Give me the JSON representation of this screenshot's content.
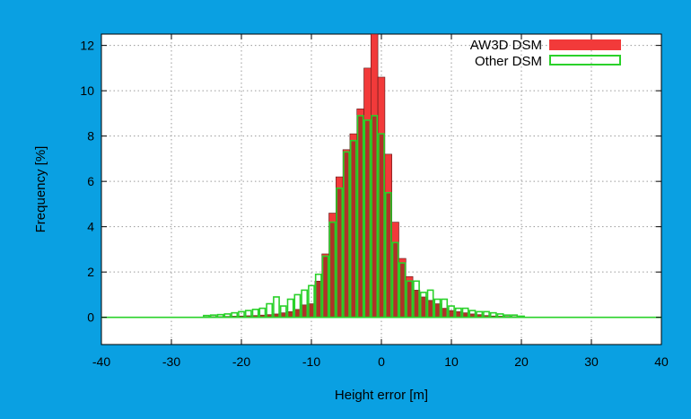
{
  "chart_data": {
    "type": "bar",
    "xlabel": "Height error [m]",
    "ylabel": "Frequency [%]",
    "xlim": [
      -40,
      40
    ],
    "ylim": [
      -1.2,
      12.5
    ],
    "xticks": [
      -40,
      -30,
      -20,
      -10,
      0,
      10,
      20,
      30,
      40
    ],
    "yticks": [
      0,
      2,
      4,
      6,
      8,
      10,
      12
    ],
    "grid": true,
    "legend_position": "top-right",
    "bin_width": 1,
    "x": [
      -25,
      -24,
      -23,
      -22,
      -21,
      -20,
      -19,
      -18,
      -17,
      -16,
      -15,
      -14,
      -13,
      -12,
      -11,
      -10,
      -9,
      -8,
      -7,
      -6,
      -5,
      -4,
      -3,
      -2,
      -1,
      0,
      1,
      2,
      3,
      4,
      5,
      6,
      7,
      8,
      9,
      10,
      11,
      12,
      13,
      14,
      15,
      16,
      17,
      18,
      19,
      20
    ],
    "series": [
      {
        "name": "AW3D DSM",
        "color": "#f23a3a",
        "values": [
          0.02,
          0.03,
          0.03,
          0.04,
          0.05,
          0.06,
          0.07,
          0.08,
          0.1,
          0.12,
          0.15,
          0.2,
          0.25,
          0.35,
          0.55,
          0.6,
          1.6,
          2.8,
          4.6,
          6.2,
          7.4,
          8.1,
          9.2,
          11.0,
          12.5,
          10.6,
          7.2,
          4.2,
          2.6,
          1.8,
          1.2,
          0.9,
          0.75,
          0.6,
          0.4,
          0.3,
          0.25,
          0.2,
          0.15,
          0.12,
          0.08,
          0.06,
          0.05,
          0.04,
          0.03,
          0.02
        ]
      },
      {
        "name": "Other DSM",
        "color": "#2ad12a",
        "values": [
          0.08,
          0.1,
          0.12,
          0.15,
          0.2,
          0.25,
          0.3,
          0.35,
          0.4,
          0.6,
          0.9,
          0.5,
          0.8,
          1.0,
          1.2,
          1.4,
          1.9,
          2.7,
          4.2,
          5.7,
          7.3,
          7.8,
          8.9,
          8.7,
          8.9,
          8.1,
          5.5,
          3.3,
          2.4,
          1.6,
          1.6,
          1.1,
          1.2,
          0.8,
          0.8,
          0.5,
          0.4,
          0.4,
          0.3,
          0.25,
          0.25,
          0.2,
          0.15,
          0.1,
          0.1,
          0.05
        ]
      }
    ]
  }
}
